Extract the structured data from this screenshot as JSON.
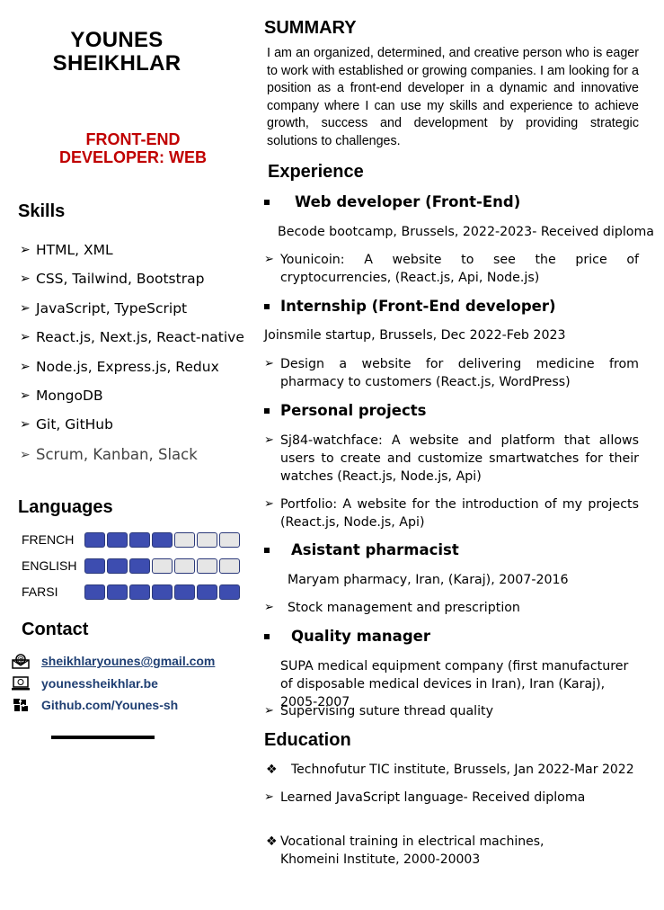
{
  "header": {
    "name_line1": "YOUNES",
    "name_line2": "SHEIKHLAR",
    "role_line1": "FRONT-END",
    "role_line2": "DEVELOPER: WEB"
  },
  "skills": {
    "title": "Skills",
    "items": [
      "HTML, XML",
      "CSS, Tailwind, Bootstrap",
      "JavaScript, TypeScript",
      "React.js, Next.js,  React-native",
      "Node.js, Express.js, Redux",
      "MongoDB",
      "Git, GitHub",
      "Scrum, Kanban, Slack"
    ]
  },
  "languages": {
    "title": "Languages",
    "items": [
      {
        "name": "FRENCH",
        "level": 4,
        "max": 7
      },
      {
        "name": "ENGLISH",
        "level": 3,
        "max": 7
      },
      {
        "name": "FARSI",
        "level": 7,
        "max": 7
      }
    ]
  },
  "contact": {
    "title": "Contact",
    "email": "sheikhlaryounes@gmail.com",
    "website": "younessheikhlar.be",
    "github": "Github.com/Younes-sh"
  },
  "summary": {
    "title": "SUMMARY",
    "text": "I am an organized, determined, and creative person who is eager to work with established or growing companies. I am looking for a position as a front-end developer in a dynamic and innovative company where I can use my skills and experience to achieve growth, success and development by providing strategic solutions to challenges."
  },
  "experience": {
    "title": "Experience",
    "web_dev": {
      "title": "Web developer (Front-End)",
      "place": "Becode bootcamp, Brussels, 2022-2023- Received diploma",
      "bullet": "Younicoin: A website to see the price of cryptocurrencies, (React.js, Api, Node.js)"
    },
    "internship": {
      "title": "Internship (Front-End developer)",
      "place": "Joinsmile startup, Brussels, Dec 2022-Feb 2023",
      "bullet": "Design a website for delivering medicine from pharmacy to customers (React.js, WordPress)"
    },
    "personal": {
      "title": "Personal projects",
      "bullet1": "Sj84-watchface: A website and platform that allows users to create and customize smartwatches for their watches (React.js, Node.js, Api)",
      "bullet2": "Portfolio: A website for the introduction of my projects (React.js, Node.js, Api)"
    },
    "pharmacist": {
      "title": "Asistant pharmacist",
      "place": "Maryam pharmacy, Iran, (Karaj), 2007-2016",
      "bullet": "Stock management and prescription"
    },
    "quality": {
      "title": "Quality manager",
      "place": "SUPA medical equipment company (first manufacturer of disposable medical devices in Iran), Iran (Karaj), 2005-2007",
      "bullet": "Supervising suture thread quality"
    }
  },
  "education": {
    "title": "Education",
    "item1": "Technofutur TIC institute, Brussels, Jan 2022-Mar 2022",
    "item1_bullet": "Learned JavaScript language- Received diploma",
    "item2": "Vocational training in electrical machines, Khomeini Institute, 2000-20003"
  }
}
